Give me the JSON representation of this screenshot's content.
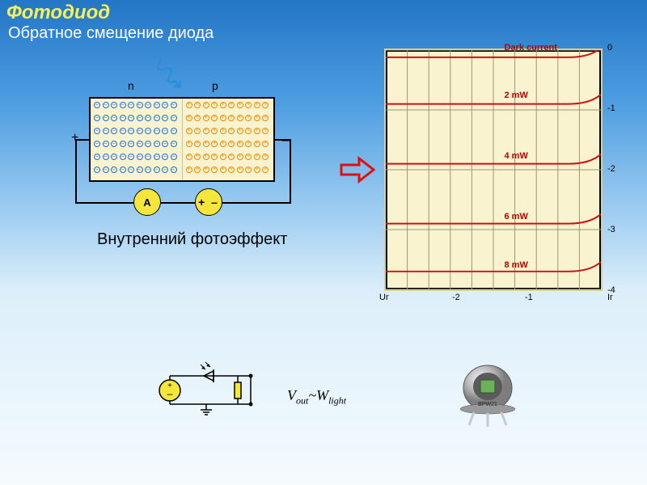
{
  "title": "Фотодиод",
  "subtitle": "Обратное смещение диода",
  "caption_photoeffect": "Внутренний фотоэффект",
  "formula": {
    "v": "V",
    "vsub": "out",
    "tilde": "~",
    "w": "W",
    "wsub": "light"
  },
  "junction": {
    "n_label": "n",
    "p_label": "p",
    "plus": "+",
    "minus": "–",
    "meterA": "A",
    "meterV": "+   –",
    "n_color": "#1b6fd6",
    "p_color": "#f08a00",
    "photon_color": "#2a8ed8",
    "bg": "#faf3d0",
    "n_rows": 6,
    "n_cols": 10,
    "p_rows": 6,
    "p_cols": 10
  },
  "chart": {
    "type": "line",
    "bg": "#faf3d0",
    "frame_color": "#000000",
    "grid_color": "#9e9470",
    "curve_color": "#d01010",
    "x_gridlines": 10,
    "ylim": [
      -4,
      0
    ],
    "xlim": [
      -3,
      0
    ],
    "y_ticks": [
      0,
      -1,
      -2,
      -3,
      -4
    ],
    "x_ticks": [
      {
        "v": -3,
        "l": "Ur"
      },
      {
        "v": -2,
        "l": "-2"
      },
      {
        "v": -1,
        "l": "-1"
      }
    ],
    "ir_label": "Ir",
    "curves": [
      {
        "label": "Dark current",
        "y": -0.12
      },
      {
        "label": "2 mW",
        "y": -0.9
      },
      {
        "label": "4 mW",
        "y": -1.9
      },
      {
        "label": "6 mW",
        "y": -2.9
      },
      {
        "label": "8 mW",
        "y": -3.7
      }
    ],
    "label_fontsize": 11
  },
  "arrow_color": "#e01010",
  "circuit2": {
    "stroke": "#000000",
    "source_fill": "#f5e63c",
    "resistor_fill": "#f5e63c",
    "plus": "+",
    "minus": "–"
  },
  "photodiode_component": {
    "can_color": "#b7b7b7",
    "window_outer": "#5a5a5a",
    "window_inner": "#6db05a",
    "lead_color": "#c9c9c9",
    "label": "BPW21"
  }
}
